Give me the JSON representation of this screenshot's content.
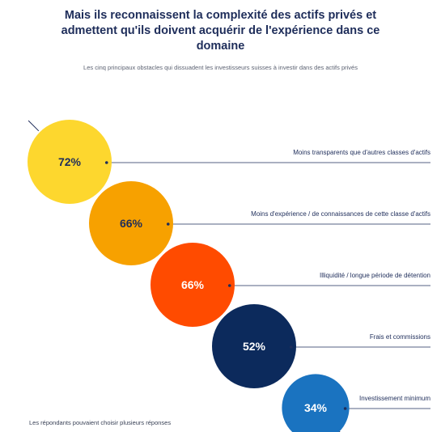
{
  "header": {
    "title": "Mais ils reconnaissent la complexité des actifs privés et admettent qu'ils doivent acquérir de l'expérience dans ce domaine",
    "subtitle": "Les cinq principaux obstacles qui dissuadent les investisseurs suisses à investir dans des actifs privés"
  },
  "footnote": "Les répondants pouvaient choisir plusieurs réponses",
  "chart_data": {
    "type": "bubble",
    "title": "Mais ils reconnaissent la complexité des actifs privés et admettent qu'ils doivent acquérir de l'expérience dans ce domaine",
    "subtitle": "Les cinq principaux obstacles qui dissuadent les investisseurs suisses à investir dans des actifs privés",
    "unit": "%",
    "categories": [
      "Moins transparents que d'autres classes d'actifs",
      "Moins d'expérience / de connaissances de cette classe d'actifs",
      "Illiquidité / longue période de détention",
      "Frais et commissions",
      "Investissement minimum"
    ],
    "values": [
      72,
      66,
      66,
      52,
      34
    ],
    "value_labels": [
      "72%",
      "66%",
      "66%",
      "52%",
      "34%"
    ],
    "colors": [
      "#fdd72e",
      "#f7a100",
      "#ff4b00",
      "#0c2a5c",
      "#1a73c0"
    ],
    "label_colors": [
      "#1e2d5a",
      "#1e2d5a",
      "#ffffff",
      "#ffffff",
      "#ffffff"
    ],
    "leader_color": "#1e2d5a"
  }
}
